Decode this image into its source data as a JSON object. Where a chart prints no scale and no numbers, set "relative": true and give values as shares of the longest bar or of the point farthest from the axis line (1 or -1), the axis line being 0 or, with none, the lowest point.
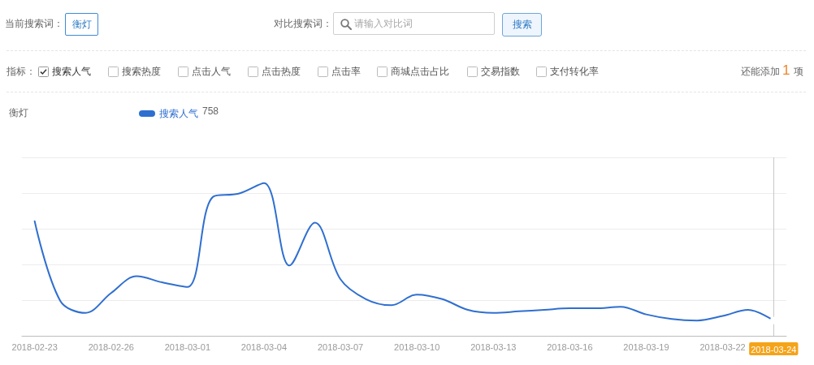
{
  "chart_data": [
    {
      "type": "other",
      "annotations": [
        "当前搜索词：",
        "衡灯",
        "对比搜索词：",
        "请输入对比词",
        "搜索",
        "指标：",
        "搜索人气",
        "搜索热度",
        "点击人气",
        "点击热度",
        "点击率",
        "商城点击占比",
        "交易指数",
        "支付转化率",
        "还能添加",
        "1",
        "项"
      ]
    },
    {
      "type": "line",
      "title": "衡灯",
      "categories": [
        "2018-02-23",
        null,
        null,
        "2018-02-26",
        null,
        null,
        "2018-03-01",
        null,
        null,
        "2018-03-04",
        null,
        null,
        "2018-03-07",
        null,
        null,
        "2018-03-10",
        null,
        null,
        "2018-03-13",
        null,
        null,
        "2018-03-16",
        null,
        null,
        "2018-03-19",
        null,
        null,
        "2018-03-22",
        null,
        "2018-03-24"
      ],
      "series": [
        {
          "name": "搜索人气",
          "color": "#2f6fd0",
          "values": [
            0.75,
            0.23,
            0.15,
            0.28,
            0.39,
            0.35,
            0.32,
            0.91,
            0.93,
            1,
            0.46,
            0.74,
            0.37,
            0.24,
            0.2,
            0.27,
            0.24,
            0.17,
            0.15,
            0.16,
            0.17,
            0.18,
            0.18,
            0.19,
            0.14,
            0.11,
            0.1,
            0.13,
            0.17,
            0.1
          ]
        }
      ],
      "relative": true,
      "grid": "y",
      "legend": "top left",
      "marker": "none",
      "annotations": [
        "758"
      ],
      "ref_lines": [
        {
          "axis": "x",
          "value": "2018-03-24",
          "color": "#c8c8c8"
        }
      ]
    }
  ]
}
